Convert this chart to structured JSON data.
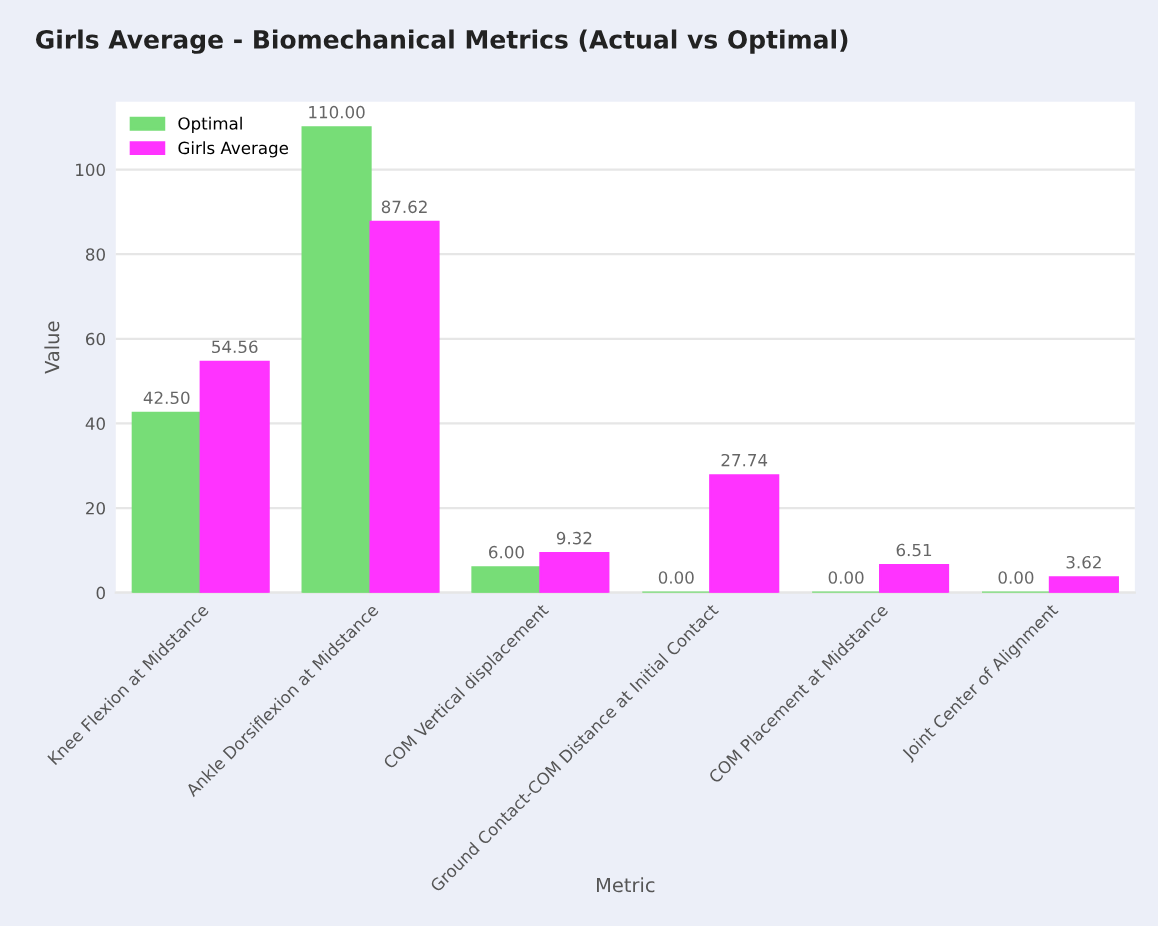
{
  "chart_data": {
    "type": "bar",
    "title": "Girls Average - Biomechanical Metrics (Actual vs Optimal)",
    "xlabel": "Metric",
    "ylabel": "Value",
    "categories": [
      "Knee Flexion at Midstance",
      "Ankle Dorsiflexion at Midstance",
      "COM Vertical displacement",
      "Ground Contact-COM Distance at Initial Contact",
      "COM Placement at Midstance",
      "Joint Center of Alignment"
    ],
    "series": [
      {
        "name": "Optimal",
        "color": "#77dd77",
        "values": [
          42.5,
          110.0,
          6.0,
          0.0,
          0.0,
          0.0
        ],
        "value_labels": [
          "42.50",
          "110.00",
          "6.00",
          "0.00",
          "0.00",
          "0.00"
        ]
      },
      {
        "name": "Girls Average",
        "color": "#ff33ff",
        "values": [
          54.56,
          87.62,
          9.32,
          27.74,
          6.51,
          3.62
        ],
        "value_labels": [
          "54.56",
          "87.62",
          "9.32",
          "27.74",
          "6.51",
          "3.62"
        ]
      }
    ],
    "ylim": [
      0,
      116
    ],
    "yticks": [
      0,
      20,
      40,
      60,
      80,
      100
    ],
    "grid": "y",
    "legend": "top left"
  }
}
